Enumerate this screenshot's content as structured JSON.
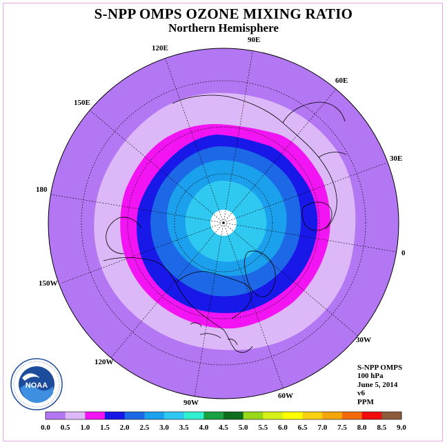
{
  "title": "S-NPP OMPS OZONE MIXING RATIO",
  "subtitle": "Northern Hemisphere",
  "longitude_labels": [
    "90E",
    "60E",
    "30E",
    "0",
    "30W",
    "60W",
    "90W",
    "120W",
    "150W",
    "180",
    "150E",
    "120E"
  ],
  "info": {
    "instrument": "S-NPP OMPS",
    "level": "100 hPa",
    "date": "June 5, 2014",
    "version": "v6",
    "units": "PPM"
  },
  "legend": {
    "ticks": [
      "0.0",
      "0.5",
      "1.0",
      "1.5",
      "2.0",
      "2.5",
      "3.0",
      "3.5",
      "4.0",
      "4.5",
      "5.0",
      "5.5",
      "6.0",
      "6.5",
      "7.0",
      "7.5",
      "8.0",
      "8.5",
      "9.0"
    ],
    "colors": [
      "#b377f3",
      "#ddb8f8",
      "#f214f2",
      "#1818e8",
      "#1c68e6",
      "#1aa0ec",
      "#2fc8f0",
      "#30f0d0",
      "#19a040",
      "#0e6e1e",
      "#98d818",
      "#d6f018",
      "#ffff00",
      "#f8d010",
      "#f2a60c",
      "#f26a0c",
      "#f00c0c",
      "#8e5a3c"
    ]
  },
  "colors": {
    "background": "#ffffff",
    "frame_border": "#e8a8e8",
    "no_data": "#ffffff"
  }
}
